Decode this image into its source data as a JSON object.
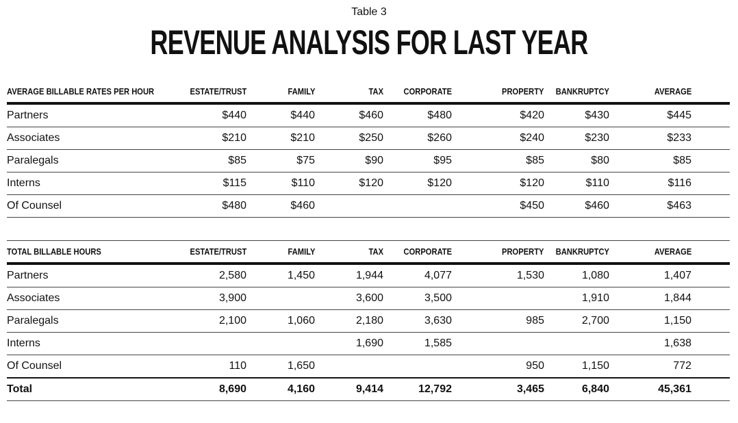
{
  "eyebrow": "Table 3",
  "title": "REVENUE ANALYSIS FOR LAST YEAR",
  "rates": {
    "header": [
      "AVERAGE BILLABLE RATES PER HOUR",
      "ESTATE/TRUST",
      "FAMILY",
      "TAX",
      "CORPORATE",
      "PROPERTY",
      "BANKRUPTCY",
      "AVERAGE"
    ],
    "rows": [
      [
        "Partners",
        "$440",
        "$440",
        "$460",
        "$480",
        "$420",
        "$430",
        "$445"
      ],
      [
        "Associates",
        "$210",
        "$210",
        "$250",
        "$260",
        "$240",
        "$230",
        "$233"
      ],
      [
        "Paralegals",
        "$85",
        "$75",
        "$90",
        "$95",
        "$85",
        "$80",
        "$85"
      ],
      [
        "Interns",
        "$115",
        "$110",
        "$120",
        "$120",
        "$120",
        "$110",
        "$116"
      ],
      [
        "Of Counsel",
        "$480",
        "$460",
        "",
        "",
        "$450",
        "$460",
        "$463"
      ]
    ]
  },
  "hours": {
    "header": [
      "TOTAL BILLABLE HOURS",
      "ESTATE/TRUST",
      "FAMILY",
      "TAX",
      "CORPORATE",
      "PROPERTY",
      "BANKRUPTCY",
      "AVERAGE"
    ],
    "rows": [
      [
        "Partners",
        "2,580",
        "1,450",
        "1,944",
        "4,077",
        "1,530",
        "1,080",
        "1,407"
      ],
      [
        "Associates",
        "3,900",
        "",
        "3,600",
        "3,500",
        "",
        "1,910",
        "1,844"
      ],
      [
        "Paralegals",
        "2,100",
        "1,060",
        "2,180",
        "3,630",
        "985",
        "2,700",
        "1,150"
      ],
      [
        "Interns",
        "",
        "",
        "1,690",
        "1,585",
        "",
        "",
        "1,638"
      ],
      [
        "Of Counsel",
        "110",
        "1,650",
        "",
        "",
        "950",
        "1,150",
        "772"
      ]
    ],
    "total": [
      "Total",
      "8,690",
      "4,160",
      "9,414",
      "12,792",
      "3,465",
      "6,840",
      "45,361"
    ]
  }
}
